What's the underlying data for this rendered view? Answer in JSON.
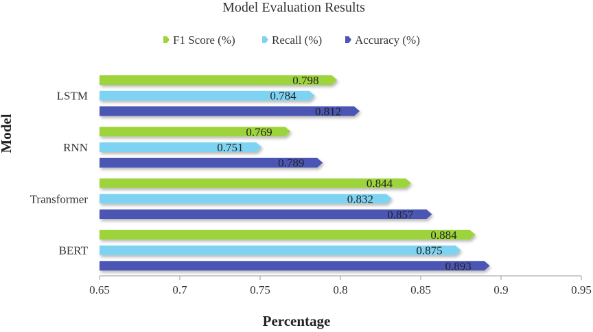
{
  "chart_data": {
    "type": "bar",
    "orientation": "horizontal",
    "title": "Model Evaluation Results",
    "xlabel": "Percentage",
    "ylabel": "Model",
    "xlim": [
      0.65,
      0.95
    ],
    "xticks": [
      0.65,
      0.7,
      0.75,
      0.8,
      0.85,
      0.9,
      0.95
    ],
    "xtick_labels": [
      "0.65",
      "0.7",
      "0.75",
      "0.8",
      "0.85",
      "0.9",
      "0.95"
    ],
    "categories": [
      "LSTM",
      "RNN",
      "Transformer",
      "BERT"
    ],
    "series": [
      {
        "name": "F1 Score (%)",
        "color": "#9ed43b",
        "values": [
          0.798,
          0.769,
          0.844,
          0.884
        ],
        "labels": [
          "0.798",
          "0.769",
          "0.844",
          "0.884"
        ]
      },
      {
        "name": "Recall (%)",
        "color": "#7fd3f2",
        "values": [
          0.784,
          0.751,
          0.832,
          0.875
        ],
        "labels": [
          "0.784",
          "0.751",
          "0.832",
          "0.875"
        ]
      },
      {
        "name": "Accuracy (%)",
        "color": "#4c56b4",
        "values": [
          0.812,
          0.789,
          0.857,
          0.893
        ],
        "labels": [
          "0.812",
          "0.789",
          "0.857",
          "0.893"
        ]
      }
    ],
    "legend_position": "top",
    "grid": false
  }
}
